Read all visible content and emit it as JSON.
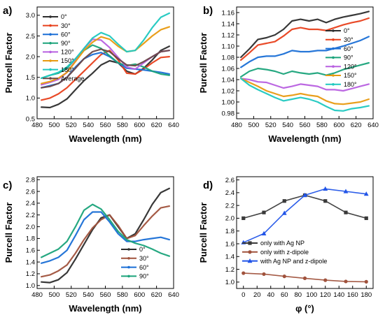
{
  "figure": {
    "background": "#ffffff"
  },
  "chart_data": [
    {
      "panel": "a)",
      "type": "line",
      "xlabel": "Wavelength (nm)",
      "ylabel": "Purcell Factor",
      "xlim": [
        480,
        640
      ],
      "ylim": [
        0.5,
        3.2
      ],
      "xticks": [
        480,
        500,
        520,
        540,
        560,
        580,
        600,
        620,
        640
      ],
      "yticks": [
        0.5,
        1.0,
        1.5,
        2.0,
        2.5,
        3.0
      ],
      "ytick_labels": [
        "0.5",
        "1.0",
        "1.5",
        "2.0",
        "2.5",
        "3.0"
      ],
      "legend_position": "upper-left",
      "series": [
        {
          "name": "0°",
          "color": "#2d2d2d",
          "x": [
            485,
            495,
            505,
            515,
            525,
            535,
            545,
            555,
            565,
            575,
            585,
            595,
            605,
            615,
            625,
            635
          ],
          "y": [
            0.78,
            0.77,
            0.85,
            0.98,
            1.2,
            1.42,
            1.6,
            1.8,
            1.9,
            1.85,
            1.65,
            1.58,
            1.72,
            1.92,
            2.15,
            2.25
          ]
        },
        {
          "name": "30°",
          "color": "#e8401c",
          "x": [
            485,
            495,
            505,
            515,
            525,
            535,
            545,
            555,
            565,
            575,
            585,
            595,
            605,
            615,
            625,
            635
          ],
          "y": [
            0.95,
            1.0,
            1.1,
            1.25,
            1.45,
            1.65,
            1.85,
            2.05,
            2.15,
            1.92,
            1.6,
            1.58,
            1.7,
            1.85,
            1.98,
            2.0
          ]
        },
        {
          "name": "60°",
          "color": "#1a6fd6",
          "x": [
            485,
            495,
            505,
            515,
            525,
            535,
            545,
            555,
            565,
            575,
            585,
            595,
            605,
            615,
            625,
            635
          ],
          "y": [
            1.25,
            1.3,
            1.35,
            1.5,
            1.75,
            1.95,
            2.05,
            2.1,
            2.0,
            1.85,
            1.72,
            1.7,
            1.68,
            1.65,
            1.62,
            1.58
          ]
        },
        {
          "name": "90°",
          "color": "#1aa37a",
          "x": [
            485,
            495,
            505,
            515,
            525,
            535,
            545,
            555,
            565,
            575,
            585,
            595,
            605,
            615,
            625,
            635
          ],
          "y": [
            1.48,
            1.55,
            1.6,
            1.72,
            1.95,
            2.15,
            2.28,
            2.2,
            2.02,
            1.85,
            1.78,
            1.82,
            1.75,
            1.65,
            1.58,
            1.55
          ]
        },
        {
          "name": "120°",
          "color": "#b860e0",
          "x": [
            485,
            495,
            505,
            515,
            525,
            535,
            545,
            555,
            565,
            575,
            585,
            595,
            605,
            615,
            625,
            635
          ],
          "y": [
            1.32,
            1.38,
            1.45,
            1.62,
            1.9,
            2.2,
            2.42,
            2.4,
            2.22,
            1.98,
            1.75,
            1.7,
            1.85,
            2.0,
            2.12,
            2.15
          ]
        },
        {
          "name": "150°",
          "color": "#e89a10",
          "x": [
            485,
            495,
            505,
            515,
            525,
            535,
            545,
            555,
            565,
            575,
            585,
            595,
            605,
            615,
            625,
            635
          ],
          "y": [
            1.35,
            1.4,
            1.48,
            1.62,
            1.88,
            2.15,
            2.35,
            2.48,
            2.42,
            2.25,
            2.12,
            2.15,
            2.32,
            2.5,
            2.65,
            2.72
          ]
        },
        {
          "name": "180°",
          "color": "#1fc8c0",
          "x": [
            485,
            495,
            505,
            515,
            525,
            535,
            545,
            555,
            565,
            575,
            585,
            595,
            605,
            615,
            625,
            635
          ],
          "y": [
            1.48,
            1.55,
            1.62,
            1.75,
            1.95,
            2.2,
            2.45,
            2.58,
            2.5,
            2.3,
            2.12,
            2.15,
            2.4,
            2.7,
            2.95,
            3.05
          ]
        },
        {
          "name": "Average",
          "color": "#6a4848",
          "x": [
            485,
            495,
            505,
            515,
            525,
            535,
            545,
            555,
            565,
            575,
            585,
            595,
            605,
            615,
            625,
            635
          ],
          "y": [
            1.25,
            1.28,
            1.35,
            1.5,
            1.72,
            1.95,
            2.12,
            2.18,
            2.12,
            1.95,
            1.8,
            1.78,
            1.88,
            2.0,
            2.12,
            2.15
          ]
        }
      ]
    },
    {
      "panel": "b)",
      "type": "line",
      "xlabel": "Wavelength (nm)",
      "ylabel": "Purcell Factor",
      "xlim": [
        480,
        640
      ],
      "ylim": [
        0.97,
        1.17
      ],
      "xticks": [
        480,
        500,
        520,
        540,
        560,
        580,
        600,
        620,
        640
      ],
      "yticks": [
        0.98,
        1.0,
        1.02,
        1.04,
        1.06,
        1.08,
        1.1,
        1.12,
        1.14,
        1.16
      ],
      "ytick_labels": [
        "0.98",
        "1.00",
        "1.02",
        "1.04",
        "1.06",
        "1.08",
        "1.10",
        "1.12",
        "1.14",
        "1.16"
      ],
      "legend_position": "upper-right",
      "series": [
        {
          "name": "0°",
          "color": "#2d2d2d",
          "x": [
            485,
            495,
            505,
            515,
            525,
            535,
            545,
            555,
            565,
            575,
            585,
            595,
            605,
            615,
            625,
            635
          ],
          "y": [
            1.08,
            1.095,
            1.112,
            1.115,
            1.12,
            1.13,
            1.145,
            1.148,
            1.145,
            1.148,
            1.142,
            1.148,
            1.152,
            1.155,
            1.158,
            1.162
          ]
        },
        {
          "name": "30°",
          "color": "#e8401c",
          "x": [
            485,
            495,
            505,
            515,
            525,
            535,
            545,
            555,
            565,
            575,
            585,
            595,
            605,
            615,
            625,
            635
          ],
          "y": [
            1.075,
            1.088,
            1.102,
            1.105,
            1.108,
            1.118,
            1.13,
            1.133,
            1.13,
            1.13,
            1.128,
            1.133,
            1.138,
            1.142,
            1.145,
            1.15
          ]
        },
        {
          "name": "60°",
          "color": "#1a6fd6",
          "x": [
            485,
            495,
            505,
            515,
            525,
            535,
            545,
            555,
            565,
            575,
            585,
            595,
            605,
            615,
            625,
            635
          ],
          "y": [
            1.062,
            1.072,
            1.08,
            1.082,
            1.082,
            1.086,
            1.092,
            1.09,
            1.09,
            1.092,
            1.092,
            1.096,
            1.1,
            1.105,
            1.11,
            1.117
          ]
        },
        {
          "name": "90°",
          "color": "#1aa37a",
          "x": [
            485,
            495,
            505,
            515,
            525,
            535,
            545,
            555,
            565,
            575,
            585,
            595,
            605,
            615,
            625,
            635
          ],
          "y": [
            1.045,
            1.055,
            1.06,
            1.058,
            1.055,
            1.05,
            1.055,
            1.052,
            1.05,
            1.052,
            1.048,
            1.052,
            1.058,
            1.062,
            1.066,
            1.07
          ]
        },
        {
          "name": "120°",
          "color": "#b860e0",
          "x": [
            485,
            495,
            505,
            515,
            525,
            535,
            545,
            555,
            565,
            575,
            585,
            595,
            605,
            615,
            625,
            635
          ],
          "y": [
            1.042,
            1.04,
            1.036,
            1.035,
            1.03,
            1.025,
            1.028,
            1.032,
            1.03,
            1.028,
            1.022,
            1.022,
            1.02,
            1.024,
            1.028,
            1.032
          ]
        },
        {
          "name": "150°",
          "color": "#e89a10",
          "x": [
            485,
            495,
            505,
            515,
            525,
            535,
            545,
            555,
            565,
            575,
            585,
            595,
            605,
            615,
            625,
            635
          ],
          "y": [
            1.042,
            1.035,
            1.028,
            1.02,
            1.015,
            1.01,
            1.012,
            1.015,
            1.012,
            1.01,
            1.002,
            0.997,
            0.996,
            0.998,
            1.0,
            1.005
          ]
        },
        {
          "name": "180°",
          "color": "#1fc8c0",
          "x": [
            485,
            495,
            505,
            515,
            525,
            535,
            545,
            555,
            565,
            575,
            585,
            595,
            605,
            615,
            625,
            635
          ],
          "y": [
            1.042,
            1.03,
            1.022,
            1.015,
            1.008,
            1.002,
            1.005,
            1.008,
            1.005,
            1.0,
            0.992,
            0.985,
            0.984,
            0.988,
            0.99,
            0.993
          ]
        }
      ]
    },
    {
      "panel": "c)",
      "type": "line",
      "xlabel": "Wavelength (nm)",
      "ylabel": "Purcell Factor",
      "xlim": [
        480,
        640
      ],
      "ylim": [
        0.95,
        2.85
      ],
      "xticks": [
        480,
        500,
        520,
        540,
        560,
        580,
        600,
        620,
        640
      ],
      "yticks": [
        1.0,
        1.2,
        1.4,
        1.6,
        1.8,
        2.0,
        2.2,
        2.4,
        2.6,
        2.8
      ],
      "ytick_labels": [
        "1.0",
        "1.2",
        "1.4",
        "1.6",
        "1.8",
        "2.0",
        "2.2",
        "2.4",
        "2.6",
        "2.8"
      ],
      "legend_position": "lower-right",
      "series": [
        {
          "name": "0°",
          "color": "#2d2d2d",
          "x": [
            485,
            495,
            505,
            515,
            525,
            535,
            545,
            555,
            565,
            575,
            585,
            595,
            605,
            615,
            625,
            635
          ],
          "y": [
            1.06,
            1.05,
            1.1,
            1.22,
            1.45,
            1.7,
            1.95,
            2.15,
            2.2,
            2.0,
            1.8,
            1.88,
            2.12,
            2.38,
            2.58,
            2.65
          ]
        },
        {
          "name": "30°",
          "color": "#a0523c",
          "x": [
            485,
            495,
            505,
            515,
            525,
            535,
            545,
            555,
            565,
            575,
            585,
            595,
            605,
            615,
            625,
            635
          ],
          "y": [
            1.15,
            1.18,
            1.25,
            1.35,
            1.55,
            1.78,
            1.98,
            2.12,
            2.2,
            2.02,
            1.8,
            1.85,
            2.02,
            2.18,
            2.32,
            2.35
          ]
        },
        {
          "name": "60°",
          "color": "#1a6fd6",
          "x": [
            485,
            495,
            505,
            515,
            525,
            535,
            545,
            555,
            565,
            575,
            585,
            595,
            605,
            615,
            625,
            635
          ],
          "y": [
            1.38,
            1.42,
            1.48,
            1.6,
            1.85,
            2.12,
            2.25,
            2.25,
            2.08,
            1.88,
            1.75,
            1.75,
            1.78,
            1.8,
            1.82,
            1.78
          ]
        },
        {
          "name": "90°",
          "color": "#1aa37a",
          "x": [
            485,
            495,
            505,
            515,
            525,
            535,
            545,
            555,
            565,
            575,
            585,
            595,
            605,
            615,
            625,
            635
          ],
          "y": [
            1.48,
            1.55,
            1.62,
            1.75,
            2.0,
            2.28,
            2.38,
            2.3,
            2.12,
            1.92,
            1.78,
            1.72,
            1.68,
            1.62,
            1.55,
            1.5
          ]
        }
      ]
    },
    {
      "panel": "d)",
      "type": "line",
      "xlabel": "φ (°)",
      "ylabel": "Purcell Factor",
      "xlim": [
        -10,
        190
      ],
      "ylim": [
        0.9,
        2.65
      ],
      "xticks": [
        0,
        20,
        40,
        60,
        80,
        100,
        120,
        140,
        160,
        180
      ],
      "yticks": [
        1.0,
        1.2,
        1.4,
        1.6,
        1.8,
        2.0,
        2.2,
        2.4,
        2.6
      ],
      "ytick_labels": [
        "1.0",
        "1.2",
        "1.4",
        "1.6",
        "1.8",
        "2.0",
        "2.2",
        "2.4",
        "2.6"
      ],
      "legend_position": "center-left",
      "series": [
        {
          "name": "only with Ag NP",
          "color": "#3a3a3a",
          "marker": "square",
          "x": [
            0,
            30,
            60,
            90,
            120,
            150,
            180
          ],
          "y": [
            2.0,
            2.09,
            2.27,
            2.36,
            2.27,
            2.09,
            2.0
          ]
        },
        {
          "name": "only with z-dipole",
          "color": "#a0523c",
          "marker": "circle",
          "x": [
            0,
            30,
            60,
            90,
            120,
            150,
            180
          ],
          "y": [
            1.14,
            1.125,
            1.09,
            1.06,
            1.03,
            1.01,
            1.005
          ]
        },
        {
          "name": "with Ag NP and z-dipole",
          "color": "#2255e8",
          "marker": "triangle",
          "x": [
            0,
            30,
            60,
            90,
            120,
            150,
            180
          ],
          "y": [
            1.62,
            1.76,
            2.08,
            2.36,
            2.46,
            2.42,
            2.38
          ]
        }
      ]
    }
  ]
}
